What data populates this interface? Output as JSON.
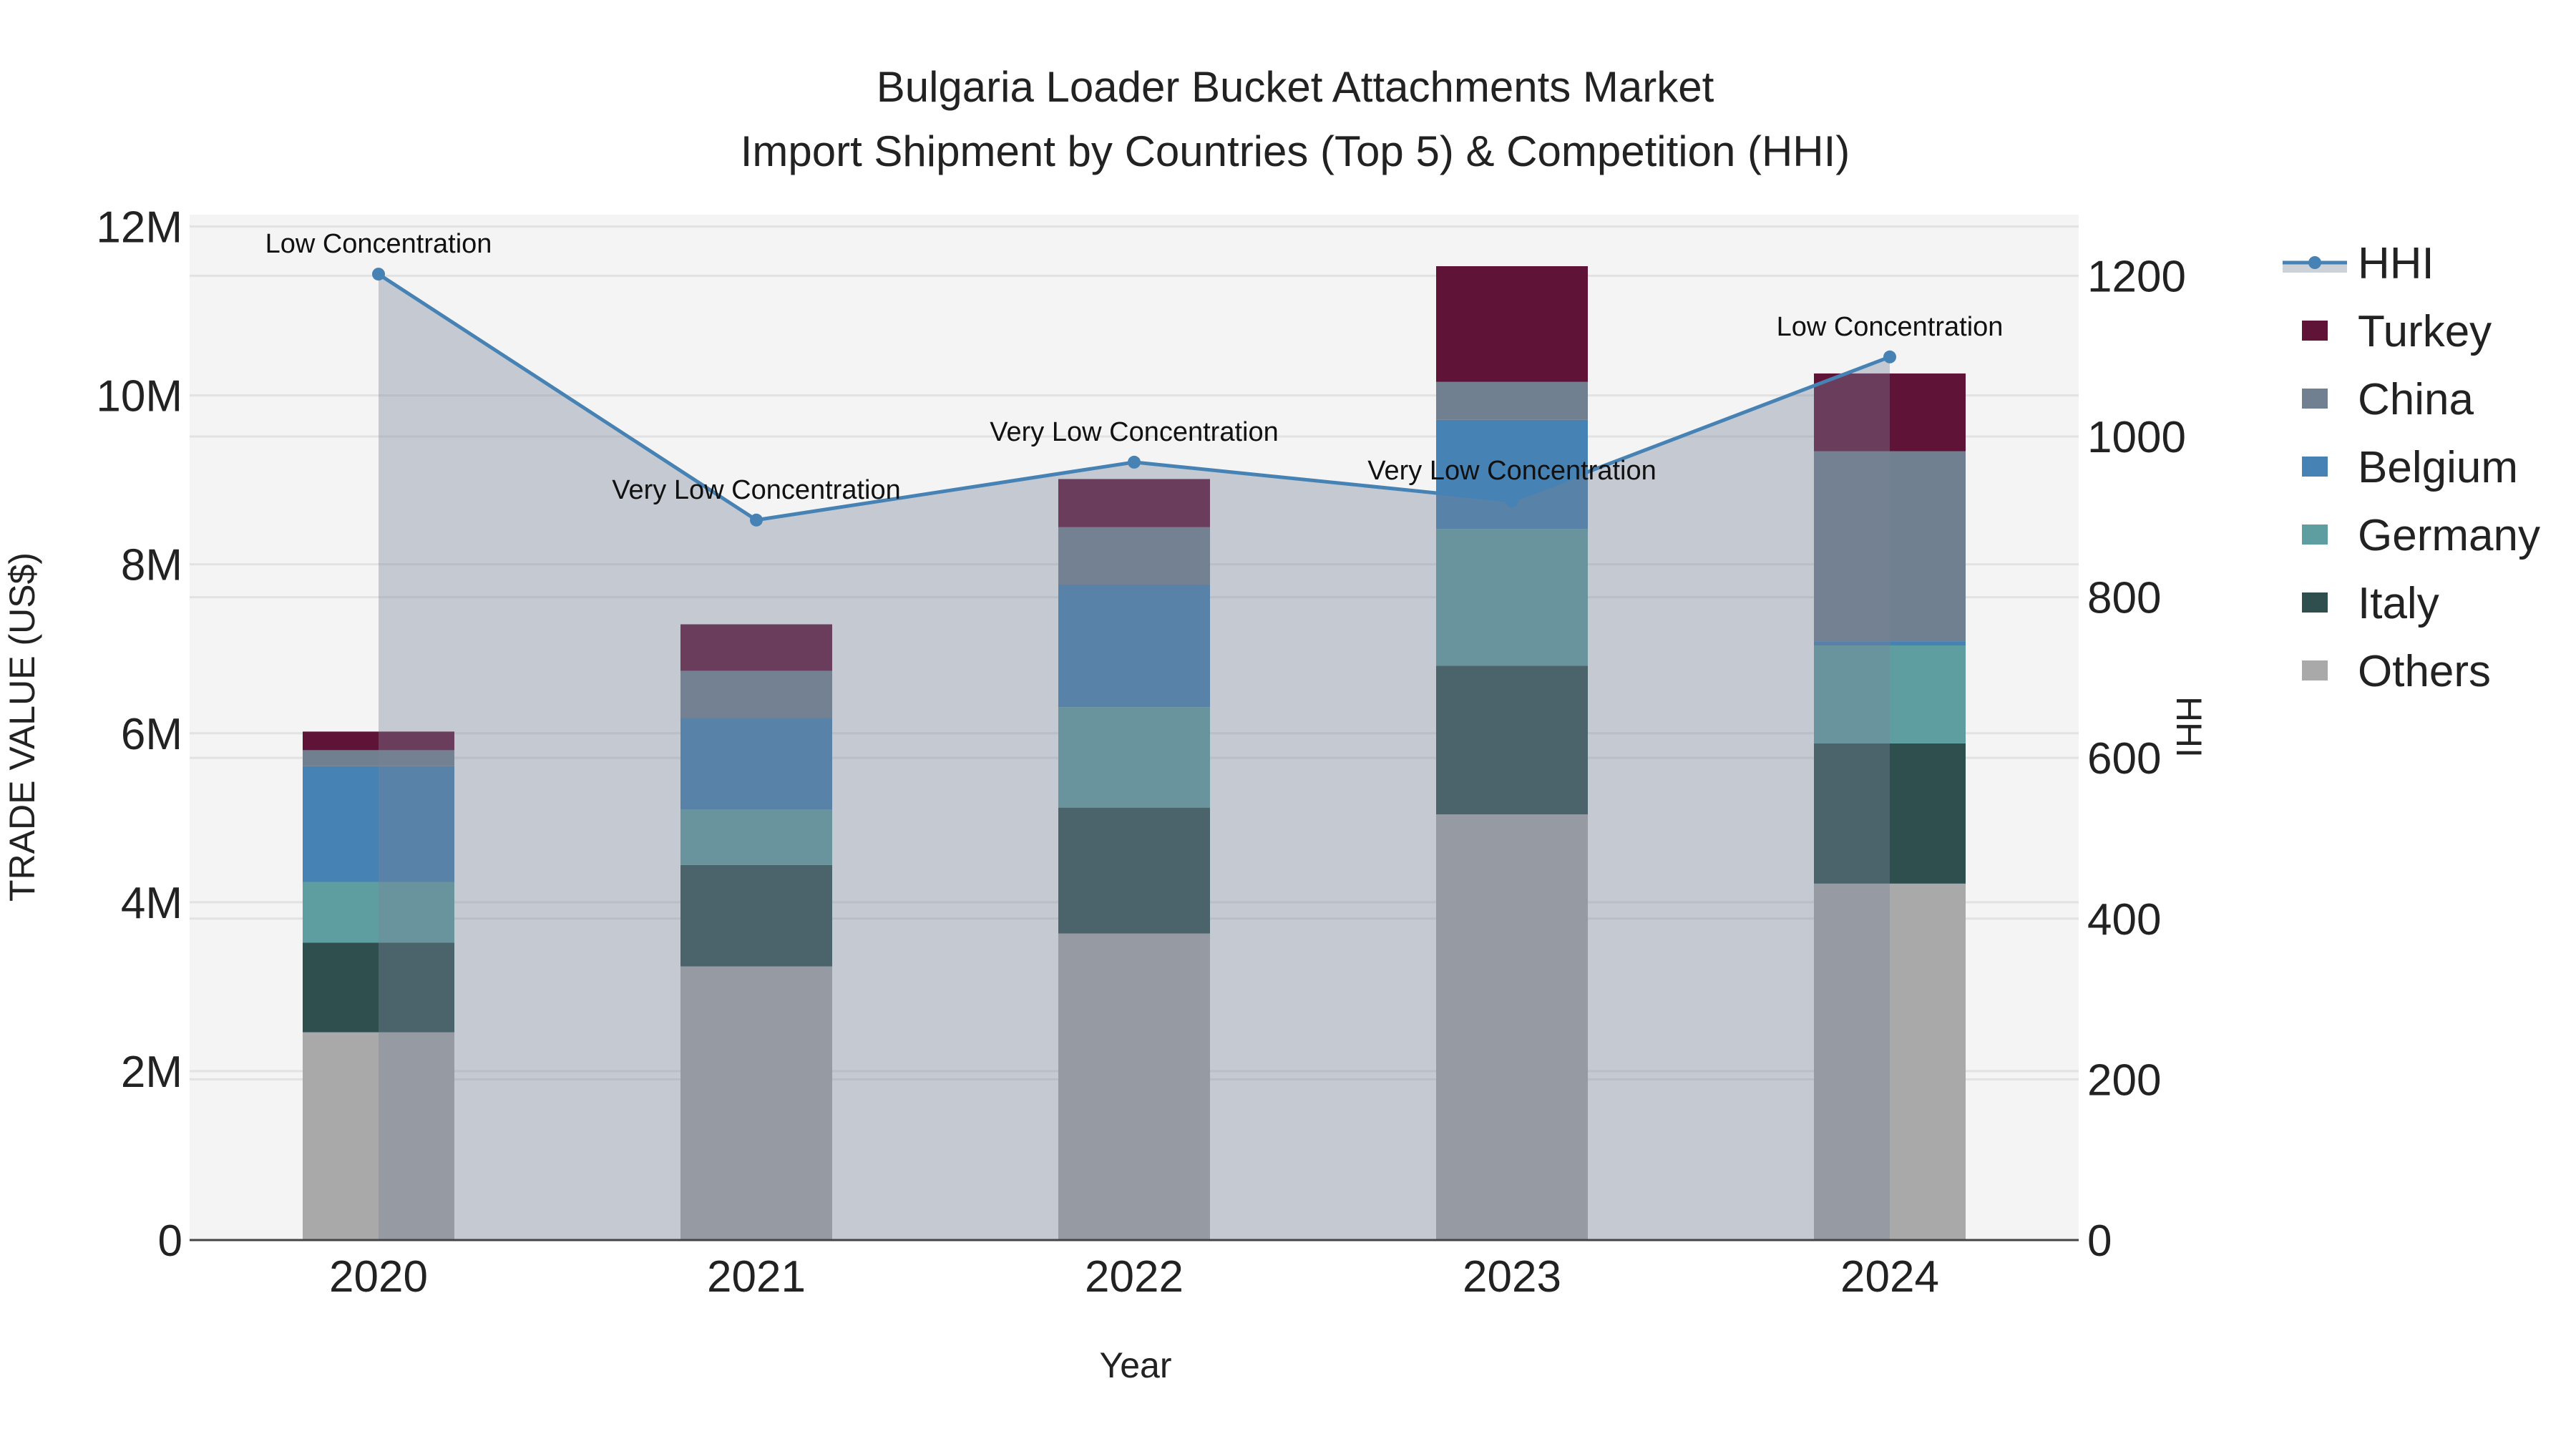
{
  "chart_data": {
    "type": "bar",
    "title_line1": "Bulgaria Loader Bucket Attachments Market",
    "title_line2": "Import Shipment by Countries (Top 5) & Competition (HHI)",
    "xlabel": "Year",
    "ylabel": "TRADE VALUE (US$)",
    "y2label": "HHI",
    "categories": [
      "2020",
      "2021",
      "2022",
      "2023",
      "2024"
    ],
    "ylim": [
      0,
      12.14
    ],
    "y2lim": [
      0,
      1276
    ],
    "yticks": [
      0,
      2,
      4,
      6,
      8,
      10,
      12
    ],
    "ytick_labels": [
      "0",
      "2M",
      "4M",
      "6M",
      "8M",
      "10M",
      "12M"
    ],
    "y2ticks": [
      0,
      200,
      400,
      600,
      800,
      1000,
      1200
    ],
    "y2tick_labels": [
      "0",
      "200",
      "400",
      "600",
      "800",
      "1000",
      "1200"
    ],
    "value_unit": "million US$",
    "stack_order": [
      "Others",
      "Italy",
      "Germany",
      "Belgium",
      "China",
      "Turkey"
    ],
    "series": [
      {
        "name": "Turkey",
        "color": "#5f1336",
        "values": [
          0.22,
          0.55,
          0.57,
          1.37,
          0.92
        ]
      },
      {
        "name": "China",
        "color": "#708090",
        "values": [
          0.19,
          0.56,
          0.68,
          0.45,
          2.25
        ]
      },
      {
        "name": "Belgium",
        "color": "#4682b4",
        "values": [
          1.37,
          1.08,
          1.45,
          1.29,
          0.05
        ]
      },
      {
        "name": "Germany",
        "color": "#5f9ea0",
        "values": [
          0.72,
          0.66,
          1.19,
          1.62,
          1.16
        ]
      },
      {
        "name": "Italy",
        "color": "#2f4f4f",
        "values": [
          1.06,
          1.2,
          1.49,
          1.76,
          1.66
        ]
      },
      {
        "name": "Others",
        "color": "#a9a9a9",
        "values": [
          2.46,
          3.24,
          3.63,
          5.04,
          4.22
        ]
      }
    ],
    "hhi": {
      "name": "HHI",
      "color": "#4682b4",
      "values": [
        1202,
        896,
        968,
        920,
        1099
      ],
      "annotations": [
        "Low Concentration",
        "Very Low Concentration",
        "Very Low Concentration",
        "Very Low Concentration",
        "Low Concentration"
      ]
    },
    "legend_placement": "right",
    "grid": true
  }
}
